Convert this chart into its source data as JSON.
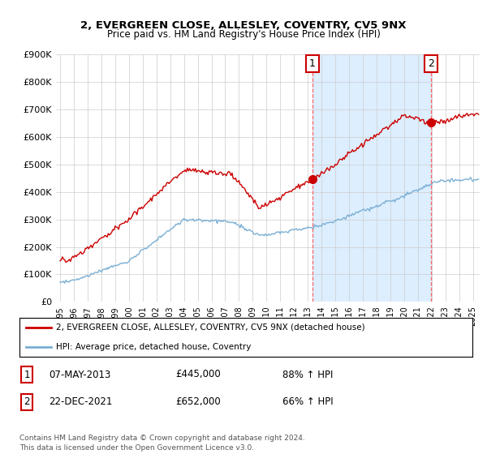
{
  "title": "2, EVERGREEN CLOSE, ALLESLEY, COVENTRY, CV5 9NX",
  "subtitle": "Price paid vs. HM Land Registry's House Price Index (HPI)",
  "ylim": [
    0,
    900000
  ],
  "yticks": [
    0,
    100000,
    200000,
    300000,
    400000,
    500000,
    600000,
    700000,
    800000,
    900000
  ],
  "ytick_labels": [
    "£0",
    "£100K",
    "£200K",
    "£300K",
    "£400K",
    "£500K",
    "£600K",
    "£700K",
    "£800K",
    "£900K"
  ],
  "hpi_color": "#7bafd4",
  "price_color": "#cc0000",
  "shade_color": "#ddeeff",
  "transaction1": {
    "year": 2013.35,
    "price": 445000,
    "label": "1",
    "date": "07-MAY-2013",
    "pct": "88% ↑ HPI"
  },
  "transaction2": {
    "year": 2021.97,
    "price": 652000,
    "label": "2",
    "date": "22-DEC-2021",
    "pct": "66% ↑ HPI"
  },
  "legend_line1": "2, EVERGREEN CLOSE, ALLESLEY, COVENTRY, CV5 9NX (detached house)",
  "legend_line2": "HPI: Average price, detached house, Coventry",
  "footnote": "Contains HM Land Registry data © Crown copyright and database right 2024.\nThis data is licensed under the Open Government Licence v3.0.",
  "background_color": "#ffffff",
  "grid_color": "#cccccc"
}
